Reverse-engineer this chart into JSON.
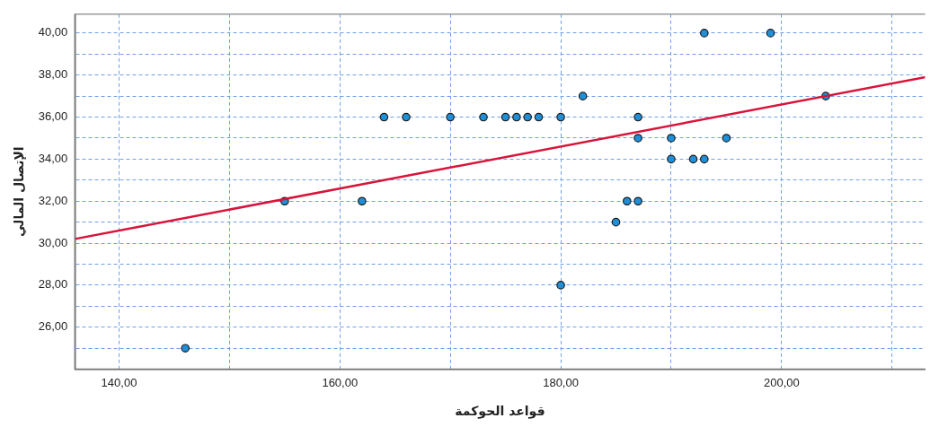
{
  "chart_data": {
    "type": "scatter",
    "xlabel": "قواعد الحوكمة",
    "ylabel": "الإتصال المالي",
    "xlim": [
      136,
      213
    ],
    "ylim": [
      24,
      40.9
    ],
    "xticks": [
      {
        "value": 140,
        "label": "140,00"
      },
      {
        "value": 150,
        "label": null
      },
      {
        "value": 160,
        "label": "160,00"
      },
      {
        "value": 170,
        "label": null
      },
      {
        "value": 180,
        "label": "180,00"
      },
      {
        "value": 190,
        "label": null
      },
      {
        "value": 200,
        "label": "200,00"
      },
      {
        "value": 210,
        "label": null
      }
    ],
    "yticks": [
      {
        "value": 25,
        "label": null
      },
      {
        "value": 26,
        "label": "26,00"
      },
      {
        "value": 27,
        "label": null
      },
      {
        "value": 28,
        "label": "28,00"
      },
      {
        "value": 29,
        "label": null
      },
      {
        "value": 30,
        "label": "30,00"
      },
      {
        "value": 31,
        "label": null
      },
      {
        "value": 32,
        "label": "32,00"
      },
      {
        "value": 33,
        "label": null
      },
      {
        "value": 34,
        "label": "34,00"
      },
      {
        "value": 35,
        "label": null
      },
      {
        "value": 36,
        "label": "36,00"
      },
      {
        "value": 37,
        "label": null
      },
      {
        "value": 38,
        "label": "38,00"
      },
      {
        "value": 39,
        "label": null
      },
      {
        "value": 40,
        "label": "40,00"
      }
    ],
    "grid": true,
    "legend": false,
    "series": [
      {
        "marker": "circle",
        "color": "#1f8fd8",
        "x": [
          146,
          155,
          162,
          164,
          166,
          170,
          173,
          175,
          176,
          177,
          178,
          180,
          180,
          182,
          185,
          186,
          187,
          187,
          187,
          190,
          190,
          192,
          193,
          193,
          195,
          199,
          204
        ],
        "values": [
          25,
          32,
          32,
          36,
          36,
          36,
          36,
          36,
          36,
          36,
          36,
          36,
          28,
          37,
          31,
          32,
          32,
          36,
          35,
          35,
          34,
          34,
          34,
          40,
          35,
          40,
          37
        ]
      },
      {
        "type": "line",
        "color": "#d8143a",
        "line_style": "solid",
        "x": [
          136,
          213
        ],
        "values": [
          30.2,
          37.9
        ]
      }
    ]
  }
}
